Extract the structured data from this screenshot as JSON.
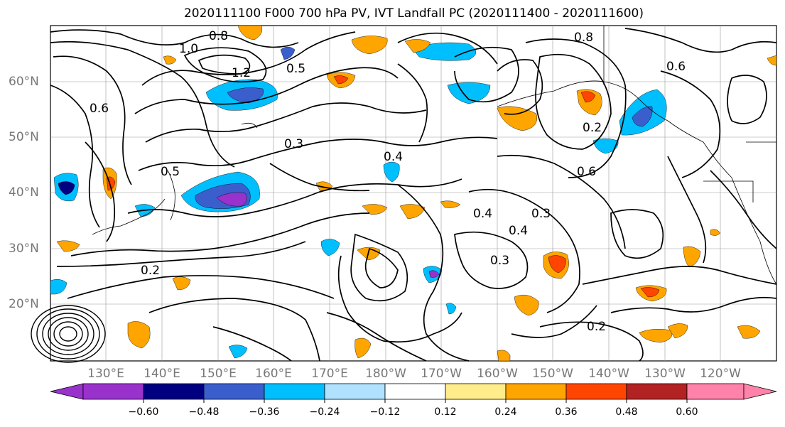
{
  "title": "2020111100 F000 700 hPa PV, IVT Landfall PC (2020111400 - 2020111600)",
  "map": {
    "lat_labels": [
      "60°N",
      "50°N",
      "40°N",
      "30°N",
      "20°N"
    ],
    "lon_labels": [
      "130°E",
      "140°E",
      "150°E",
      "160°E",
      "170°E",
      "180°W",
      "170°W",
      "160°W",
      "150°W",
      "140°W",
      "130°W",
      "120°W"
    ],
    "contour_labels": [
      "0.8",
      "1.0",
      "1.2",
      "0.5",
      "0.6",
      "0.3",
      "0.4",
      "0.2",
      "0.8",
      "0.6",
      "0.4",
      "0.5",
      "0.3",
      "0.2",
      "0.6",
      "0.4",
      "0.3",
      "0.2"
    ]
  },
  "colorbar": {
    "colors": [
      "#9932cc",
      "#000080",
      "#3a5fcd",
      "#00bfff",
      "#b0e2ff",
      "#ffffff",
      "#ffec8b",
      "#ffa500",
      "#ff4500",
      "#b22222",
      "#ff82ab"
    ],
    "tick_labels": [
      "−0.60",
      "−0.48",
      "−0.36",
      "−0.24",
      "−0.12",
      "0.12",
      "0.24",
      "0.36",
      "0.48",
      "0.60"
    ]
  }
}
